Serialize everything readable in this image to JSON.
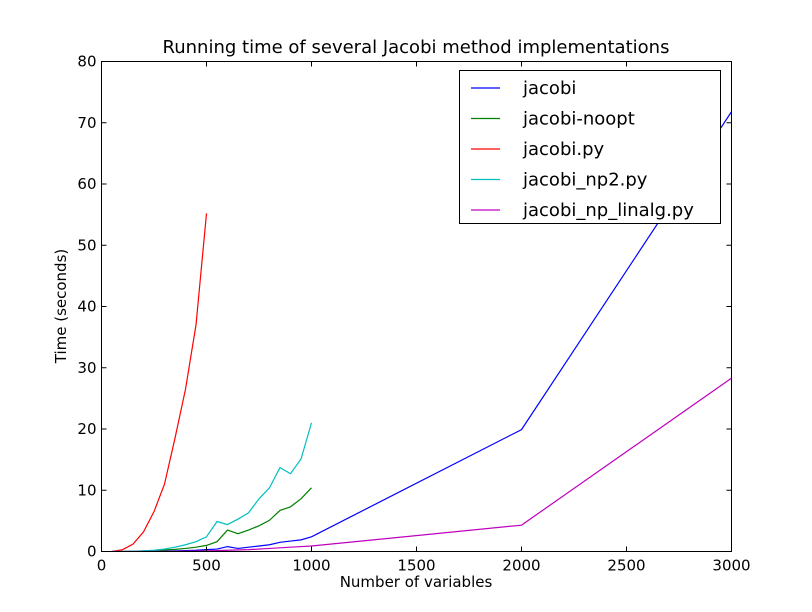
{
  "chart_data": {
    "type": "line",
    "title": "Running time of several Jacobi method implementations",
    "xlabel": "Number of variables",
    "ylabel": "Time (seconds)",
    "xlim": [
      0,
      3000
    ],
    "ylim": [
      0,
      80
    ],
    "xticks": [
      0,
      500,
      1000,
      1500,
      2000,
      2500,
      3000
    ],
    "yticks": [
      0,
      10,
      20,
      30,
      40,
      50,
      60,
      70,
      80
    ],
    "grid": false,
    "legend_position": "top-right",
    "series": [
      {
        "name": "jacobi",
        "color": "#0000ff",
        "points": [
          [
            50,
            0
          ],
          [
            100,
            0
          ],
          [
            150,
            0
          ],
          [
            200,
            0
          ],
          [
            250,
            0
          ],
          [
            300,
            0.05
          ],
          [
            350,
            0.1
          ],
          [
            400,
            0.15
          ],
          [
            450,
            0.2
          ],
          [
            500,
            0.3
          ],
          [
            550,
            0.4
          ],
          [
            600,
            0.8
          ],
          [
            650,
            0.5
          ],
          [
            700,
            0.7
          ],
          [
            750,
            0.9
          ],
          [
            800,
            1.1
          ],
          [
            850,
            1.5
          ],
          [
            900,
            1.7
          ],
          [
            950,
            1.9
          ],
          [
            1000,
            2.4
          ],
          [
            2000,
            19.9
          ],
          [
            3000,
            71.8
          ]
        ]
      },
      {
        "name": "jacobi-noopt",
        "color": "#008000",
        "points": [
          [
            50,
            0
          ],
          [
            100,
            0
          ],
          [
            150,
            0.05
          ],
          [
            200,
            0.1
          ],
          [
            250,
            0.15
          ],
          [
            300,
            0.25
          ],
          [
            350,
            0.35
          ],
          [
            400,
            0.5
          ],
          [
            450,
            0.7
          ],
          [
            500,
            1.0
          ],
          [
            550,
            1.6
          ],
          [
            600,
            3.5
          ],
          [
            650,
            2.9
          ],
          [
            700,
            3.5
          ],
          [
            750,
            4.2
          ],
          [
            800,
            5.1
          ],
          [
            850,
            6.7
          ],
          [
            900,
            7.3
          ],
          [
            950,
            8.6
          ],
          [
            1000,
            10.4
          ]
        ]
      },
      {
        "name": "jacobi.py",
        "color": "#ff0000",
        "points": [
          [
            50,
            0
          ],
          [
            100,
            0.3
          ],
          [
            150,
            1.2
          ],
          [
            200,
            3.2
          ],
          [
            250,
            6.5
          ],
          [
            300,
            11.0
          ],
          [
            350,
            18.5
          ],
          [
            400,
            26.5
          ],
          [
            450,
            37.0
          ],
          [
            500,
            55.2
          ]
        ]
      },
      {
        "name": "jacobi_np2.py",
        "color": "#00bfbf",
        "points": [
          [
            50,
            0
          ],
          [
            100,
            0
          ],
          [
            150,
            0.05
          ],
          [
            200,
            0.1
          ],
          [
            250,
            0.2
          ],
          [
            300,
            0.4
          ],
          [
            350,
            0.7
          ],
          [
            400,
            1.1
          ],
          [
            450,
            1.6
          ],
          [
            500,
            2.4
          ],
          [
            550,
            4.9
          ],
          [
            600,
            4.4
          ],
          [
            650,
            5.3
          ],
          [
            700,
            6.3
          ],
          [
            750,
            8.6
          ],
          [
            800,
            10.4
          ],
          [
            850,
            13.7
          ],
          [
            900,
            12.7
          ],
          [
            950,
            15.1
          ],
          [
            1000,
            21.0
          ]
        ]
      },
      {
        "name": "jacobi_np_linalg.py",
        "color": "#bf00bf",
        "points": [
          [
            50,
            0
          ],
          [
            100,
            0
          ],
          [
            200,
            0
          ],
          [
            300,
            0.02
          ],
          [
            400,
            0.05
          ],
          [
            500,
            0.1
          ],
          [
            600,
            0.2
          ],
          [
            700,
            0.3
          ],
          [
            800,
            0.5
          ],
          [
            900,
            0.7
          ],
          [
            1000,
            0.9
          ],
          [
            2000,
            4.3
          ],
          [
            3000,
            28.3
          ]
        ]
      }
    ]
  }
}
